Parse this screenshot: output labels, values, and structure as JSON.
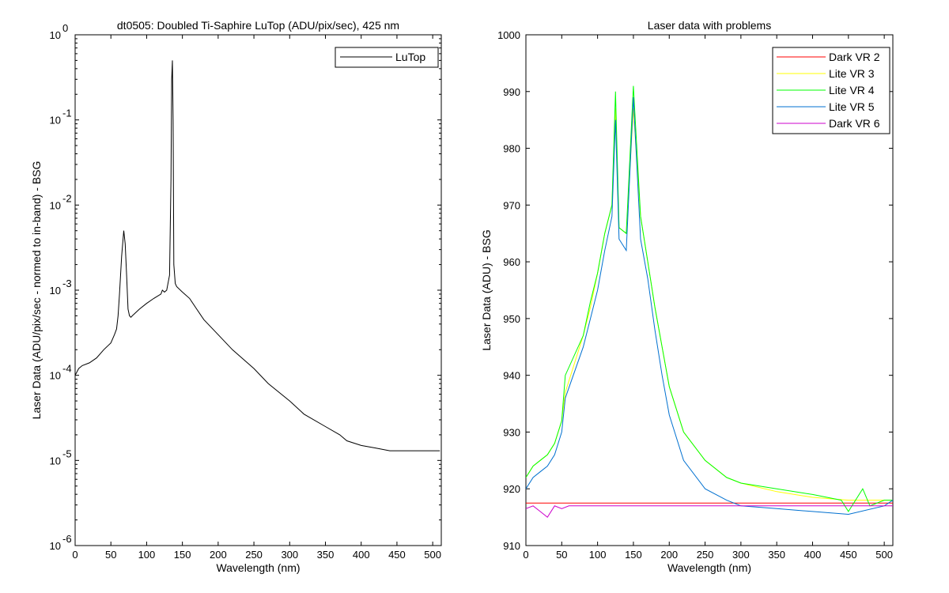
{
  "chart_data": [
    {
      "type": "line",
      "title": "dt0505: Doubled Ti-Saphire LuTop (ADU/pix/sec), 425 nm",
      "xlabel": "Wavelength (nm)",
      "ylabel": "Laser Data (ADU/pix/sec - normed to in-band) - BSG",
      "xlim": [
        0,
        512
      ],
      "ylim": [
        1e-06,
        1
      ],
      "yscale": "log",
      "grid": false,
      "legend_position": "top-right",
      "x_ticks": [
        "0",
        "50",
        "100",
        "150",
        "200",
        "250",
        "300",
        "350",
        "400",
        "450",
        "500"
      ],
      "y_ticks": [
        {
          "base": "10",
          "exp": "-6"
        },
        {
          "base": "10",
          "exp": "-5"
        },
        {
          "base": "10",
          "exp": "-4"
        },
        {
          "base": "10",
          "exp": "-3"
        },
        {
          "base": "10",
          "exp": "-2"
        },
        {
          "base": "10",
          "exp": "-1"
        },
        {
          "base": "10",
          "exp": "0"
        }
      ],
      "series": [
        {
          "name": "LuTop",
          "color": "#000000",
          "x": [
            0,
            5,
            10,
            20,
            30,
            40,
            50,
            55,
            58,
            60,
            62,
            65,
            68,
            70,
            72,
            74,
            76,
            78,
            80,
            90,
            100,
            110,
            120,
            122,
            125,
            128,
            132,
            134,
            135,
            136,
            137,
            138,
            140,
            142,
            150,
            160,
            170,
            180,
            200,
            220,
            250,
            270,
            300,
            320,
            350,
            370,
            380,
            400,
            420,
            440,
            460,
            480,
            500,
            510
          ],
          "y": [
            0.0001,
            0.00012,
            0.00013,
            0.00014,
            0.00016,
            0.0002,
            0.00024,
            0.0003,
            0.00035,
            0.0005,
            0.0009,
            0.0025,
            0.005,
            0.0035,
            0.0015,
            0.0006,
            0.0005,
            0.00048,
            0.0005,
            0.0006,
            0.0007,
            0.0008,
            0.0009,
            0.001,
            0.00095,
            0.001,
            0.0015,
            0.02,
            0.3,
            0.5,
            0.1,
            0.002,
            0.0012,
            0.0011,
            0.00095,
            0.0008,
            0.0006,
            0.00045,
            0.0003,
            0.0002,
            0.00012,
            8e-05,
            5e-05,
            3.5e-05,
            2.5e-05,
            2e-05,
            1.7e-05,
            1.5e-05,
            1.4e-05,
            1.3e-05,
            1.3e-05,
            1.3e-05,
            1.3e-05,
            1.3e-05
          ]
        }
      ]
    },
    {
      "type": "line",
      "title": "Laser data with problems",
      "xlabel": "Wavelength (nm)",
      "ylabel": "Laser Data (ADU) - BSG",
      "xlim": [
        0,
        512
      ],
      "ylim": [
        910,
        1000
      ],
      "grid": false,
      "legend_position": "top-right",
      "x_ticks": [
        "0",
        "50",
        "100",
        "150",
        "200",
        "250",
        "300",
        "350",
        "400",
        "450",
        "500"
      ],
      "y_ticks": [
        "910",
        "920",
        "930",
        "940",
        "950",
        "960",
        "970",
        "980",
        "990",
        "1000"
      ],
      "series": [
        {
          "name": "Dark VR 2",
          "color": "#ff0000",
          "x": [
            0,
            50,
            100,
            150,
            200,
            250,
            300,
            350,
            400,
            450,
            500,
            512
          ],
          "y": [
            917.5,
            917.5,
            917.5,
            917.5,
            917.5,
            917.5,
            917.5,
            917.5,
            917.5,
            917.5,
            917.5,
            917.5
          ]
        },
        {
          "name": "Lite VR 3",
          "color": "#ffff00",
          "x": [
            0,
            10,
            20,
            30,
            40,
            50,
            55,
            80,
            90,
            100,
            110,
            120,
            125,
            130,
            140,
            150,
            160,
            170,
            180,
            190,
            200,
            220,
            250,
            280,
            300,
            350,
            400,
            450,
            500,
            512
          ],
          "y": [
            922,
            924,
            925,
            926,
            928,
            932,
            937,
            947,
            952,
            958,
            965,
            970,
            987,
            966,
            965,
            987,
            968,
            960,
            952,
            945,
            938,
            930,
            925,
            922,
            921,
            919.5,
            918.5,
            918,
            918,
            918
          ]
        },
        {
          "name": "Lite VR 4",
          "color": "#00ff00",
          "x": [
            0,
            10,
            20,
            30,
            40,
            50,
            55,
            80,
            90,
            100,
            110,
            120,
            125,
            130,
            140,
            150,
            160,
            170,
            180,
            190,
            200,
            220,
            250,
            280,
            300,
            350,
            400,
            440,
            450,
            470,
            480,
            500,
            512
          ],
          "y": [
            922,
            924,
            925,
            926,
            928,
            932,
            940,
            947,
            953,
            958,
            965,
            970,
            990,
            966,
            965,
            991,
            968,
            960,
            952,
            945,
            938,
            930,
            925,
            922,
            921,
            920,
            919,
            918,
            916,
            920,
            917,
            918,
            918
          ]
        },
        {
          "name": "Lite VR 5",
          "color": "#0070d0",
          "x": [
            0,
            10,
            20,
            30,
            40,
            50,
            55,
            80,
            90,
            100,
            110,
            120,
            125,
            130,
            140,
            150,
            160,
            170,
            180,
            190,
            200,
            220,
            250,
            280,
            300,
            350,
            400,
            450,
            500,
            512
          ],
          "y": [
            920,
            922,
            923,
            924,
            926,
            930,
            936,
            945,
            950,
            955,
            962,
            968,
            985,
            964,
            962,
            989,
            964,
            957,
            948,
            940,
            933,
            925,
            920,
            918,
            917,
            916.5,
            916,
            915.5,
            917,
            918
          ]
        },
        {
          "name": "Dark VR 6",
          "color": "#cc00cc",
          "x": [
            0,
            10,
            20,
            30,
            40,
            50,
            60,
            100,
            150,
            200,
            250,
            300,
            350,
            400,
            450,
            500,
            512
          ],
          "y": [
            916.5,
            917,
            916,
            915,
            917,
            916.5,
            917,
            917,
            917,
            917,
            917,
            917,
            917,
            917,
            917,
            917,
            917
          ]
        }
      ]
    }
  ]
}
